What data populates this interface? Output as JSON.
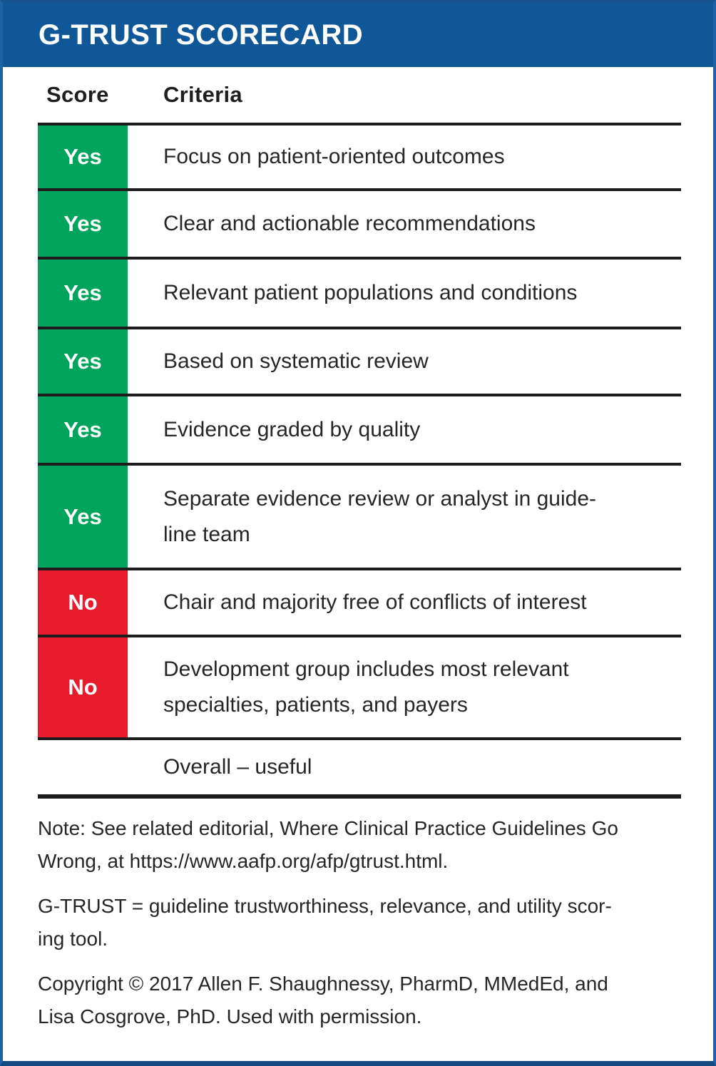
{
  "header": {
    "title": "G-TRUST SCORECARD"
  },
  "table": {
    "columns": {
      "score": "Score",
      "criteria": "Criteria"
    },
    "rows": [
      {
        "score": "Yes",
        "score_color": "green",
        "criteria": "Focus on patient-oriented outcomes"
      },
      {
        "score": "Yes",
        "score_color": "green",
        "criteria": "Clear and actionable recommendations"
      },
      {
        "score": "Yes",
        "score_color": "green",
        "criteria": "Relevant patient populations and conditions"
      },
      {
        "score": "Yes",
        "score_color": "green",
        "criteria": "Based on systematic review"
      },
      {
        "score": "Yes",
        "score_color": "green",
        "criteria": "Evidence graded by quality"
      },
      {
        "score": "Yes",
        "score_color": "green",
        "criteria": "Separate evidence review or analyst in guide-\nline team"
      },
      {
        "score": "No",
        "score_color": "red",
        "criteria": "Chair and majority free of conflicts of interest"
      },
      {
        "score": "No",
        "score_color": "red",
        "criteria": "Development group includes most relevant\nspecialties, patients, and payers"
      },
      {
        "score": "",
        "score_color": "none",
        "criteria": "Overall – useful"
      }
    ]
  },
  "footnotes": [
    "Note: See related editorial, Where Clinical Practice Guidelines Go\nWrong, at https://www.aafp.org/afp/gtrust.html.",
    "G-TRUST = guideline trustworthiness, relevance, and utility scor-\ning tool.",
    "Copyright © 2017 Allen F. Shaughnessy, PharmD, MMedEd, and\nLisa Cosgrove, PhD. Used with permission."
  ],
  "colors": {
    "header_blue": "#0f5796",
    "border_blue": "#1d62a7",
    "yes_green": "#00a45d",
    "no_red": "#e81b2d",
    "rule_black": "#1c1c1c",
    "text": "#262626"
  }
}
